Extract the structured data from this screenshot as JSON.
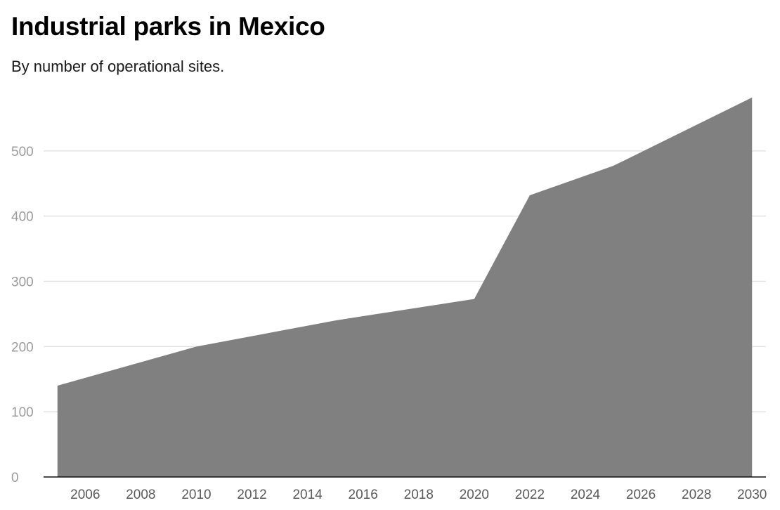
{
  "chart_data": {
    "type": "area",
    "title": "Industrial parks in Mexico",
    "subtitle": "By number of operational sites.",
    "xlabel": "",
    "ylabel": "",
    "x": [
      2005,
      2010,
      2015,
      2020,
      2022,
      2025,
      2030
    ],
    "series": [
      {
        "values": [
          140,
          200,
          240,
          273,
          432,
          477,
          582
        ]
      }
    ],
    "xlim": [
      2004.5,
      2030.5
    ],
    "ylim": [
      0,
      600
    ],
    "x_ticks": [
      2006,
      2008,
      2010,
      2012,
      2014,
      2016,
      2018,
      2020,
      2022,
      2024,
      2026,
      2028,
      2030
    ],
    "y_ticks": [
      0,
      100,
      200,
      300,
      400,
      500
    ],
    "grid": true,
    "legend": "none",
    "colors": {
      "area": "#808080",
      "grid": "#e3e3e3",
      "axis": "#111111"
    }
  }
}
